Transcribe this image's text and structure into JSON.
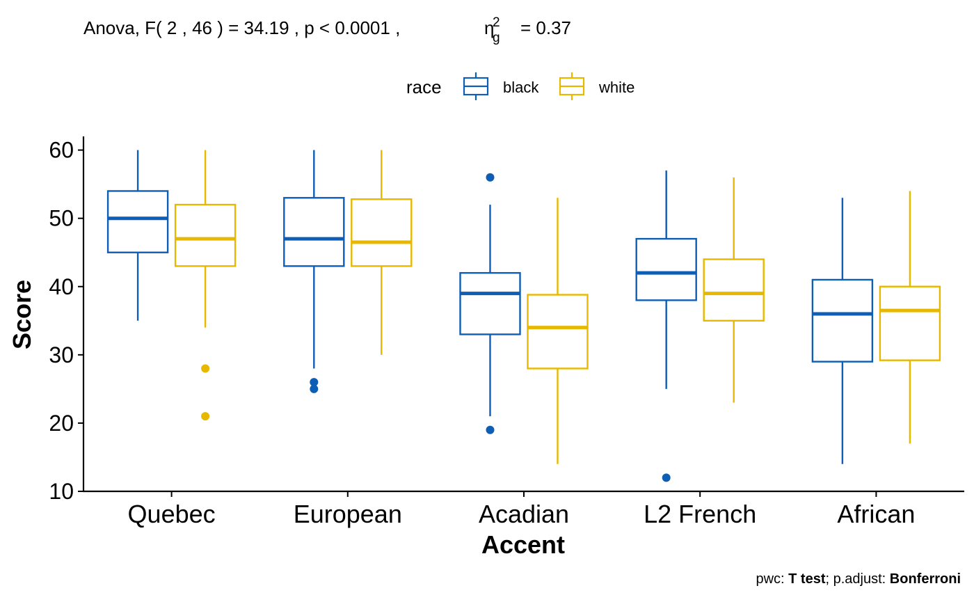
{
  "chart_data": {
    "type": "boxplot",
    "subtitle_prefix": "Anova, F( 2 , 46 ) = 34.19 , p <  0.0001 ,",
    "effect_symbol": "η",
    "effect_sub": "g",
    "effect_sup": "2",
    "effect_value": "= 0.37",
    "xlabel": "Accent",
    "ylabel": "Score",
    "ylim": [
      10,
      62
    ],
    "yticks": [
      10,
      20,
      30,
      40,
      50,
      60
    ],
    "legend": {
      "title": "race",
      "position": "top"
    },
    "categories": [
      "Quebec",
      "European",
      "Acadian",
      "L2 French",
      "African"
    ],
    "series": [
      {
        "name": "black",
        "color": "#0F5EB6",
        "boxes": [
          {
            "whisker_low": 35,
            "q1": 45,
            "median": 50,
            "q3": 54,
            "whisker_high": 60,
            "outliers": []
          },
          {
            "whisker_low": 28,
            "q1": 43,
            "median": 47,
            "q3": 53,
            "whisker_high": 60,
            "outliers": [
              26,
              25
            ]
          },
          {
            "whisker_low": 21,
            "q1": 33,
            "median": 39,
            "q3": 42,
            "whisker_high": 52,
            "outliers": [
              56,
              19
            ]
          },
          {
            "whisker_low": 25,
            "q1": 38,
            "median": 42,
            "q3": 47,
            "whisker_high": 57,
            "outliers": [
              12
            ]
          },
          {
            "whisker_low": 14,
            "q1": 29,
            "median": 36,
            "q3": 41,
            "whisker_high": 53,
            "outliers": []
          }
        ]
      },
      {
        "name": "white",
        "color": "#E7B800",
        "boxes": [
          {
            "whisker_low": 34,
            "q1": 43,
            "median": 47,
            "q3": 52,
            "whisker_high": 60,
            "outliers": [
              28,
              21
            ]
          },
          {
            "whisker_low": 30,
            "q1": 43,
            "median": 46.5,
            "q3": 52.8,
            "whisker_high": 60,
            "outliers": []
          },
          {
            "whisker_low": 14,
            "q1": 28,
            "median": 34,
            "q3": 38.8,
            "whisker_high": 53,
            "outliers": []
          },
          {
            "whisker_low": 23,
            "q1": 35,
            "median": 39,
            "q3": 44,
            "whisker_high": 56,
            "outliers": []
          },
          {
            "whisker_low": 17,
            "q1": 29.2,
            "median": 36.5,
            "q3": 40,
            "whisker_high": 54,
            "outliers": []
          }
        ]
      }
    ],
    "caption": {
      "pwc_label": "pwc: ",
      "test": "T test",
      "sep": "; p.adjust: ",
      "adjust": "Bonferroni"
    }
  }
}
